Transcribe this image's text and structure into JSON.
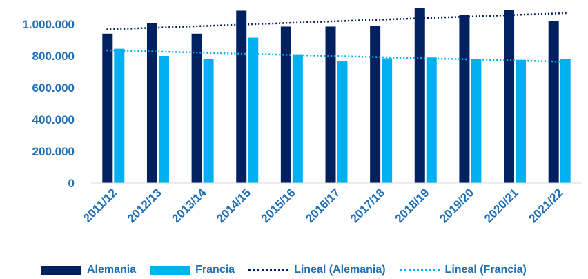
{
  "chart_data": {
    "type": "bar",
    "categories": [
      "2011/12",
      "2012/13",
      "2013/14",
      "2014/15",
      "2015/16",
      "2016/17",
      "2017/18",
      "2018/19",
      "2019/20",
      "2020/21",
      "2021/22"
    ],
    "series": [
      {
        "name": "Alemania",
        "color": "#002060",
        "values": [
          940000,
          1005000,
          940000,
          1085000,
          985000,
          985000,
          990000,
          1100000,
          1060000,
          1090000,
          1020000
        ]
      },
      {
        "name": "Francia",
        "color": "#00b0f0",
        "values": [
          845000,
          800000,
          780000,
          915000,
          810000,
          765000,
          785000,
          790000,
          780000,
          775000,
          780000
        ]
      }
    ],
    "trendlines": [
      {
        "name": "Lineal (Alemania)",
        "color": "#002060",
        "start": 967000,
        "end": 1070000
      },
      {
        "name": "Lineal (Francia)",
        "color": "#00b0f0",
        "start": 835000,
        "end": 763000
      }
    ],
    "yticks": [
      0,
      200000,
      400000,
      600000,
      800000,
      1000000
    ],
    "ytick_labels": [
      "0",
      "200.000",
      "400.000",
      "600.000",
      "800.000",
      "1.000.000"
    ],
    "ylim": [
      0,
      1100000
    ],
    "grid": false,
    "legend_position": "bottom"
  }
}
